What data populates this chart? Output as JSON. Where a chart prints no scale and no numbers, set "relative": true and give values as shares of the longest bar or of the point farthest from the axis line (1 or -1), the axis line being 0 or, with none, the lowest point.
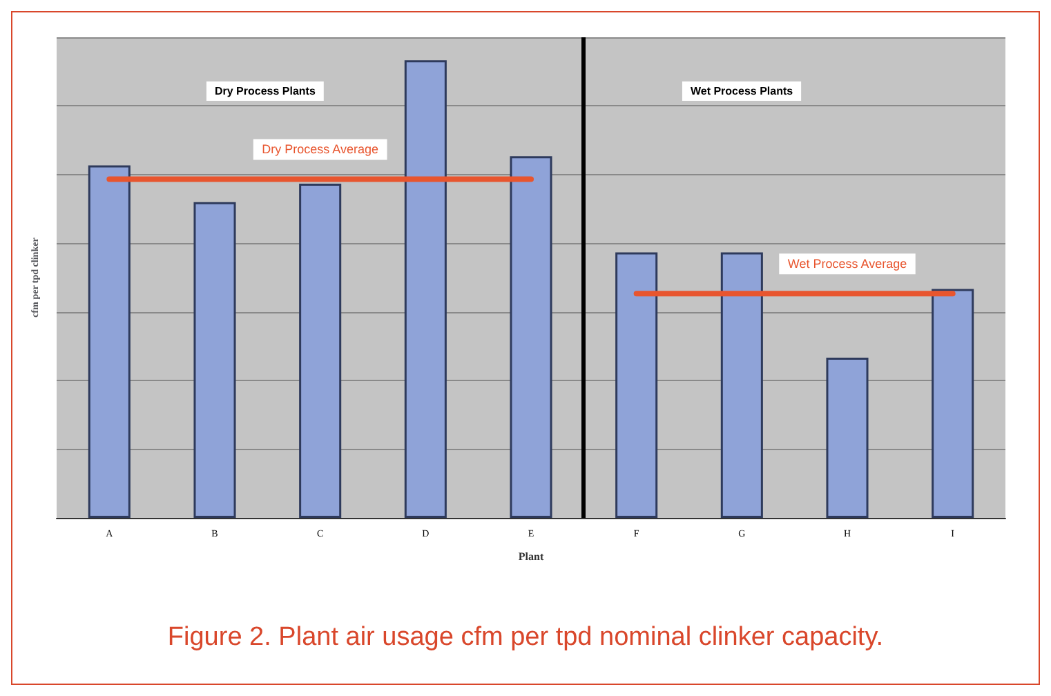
{
  "chart_data": {
    "type": "bar",
    "relative": true,
    "xlabel": "Plant",
    "ylabel": "cfm per tpd clinker",
    "categories": [
      "A",
      "B",
      "C",
      "D",
      "E",
      "F",
      "G",
      "H",
      "I"
    ],
    "series": [
      {
        "color": "#8fa3d8",
        "values": [
          0.77,
          0.69,
          0.73,
          1,
          0.79,
          0.58,
          0.58,
          0.35,
          0.5
        ]
      },
      {
        "type": "line",
        "name": "Dry Process Average",
        "color": "#e8552e",
        "values": [
          0.74,
          0.74,
          0.74,
          0.74,
          0.74,
          null,
          null,
          null,
          null
        ]
      },
      {
        "type": "line",
        "name": "Wet Process Average",
        "color": "#e8552e",
        "values": [
          null,
          null,
          null,
          null,
          null,
          0.49,
          0.49,
          0.49,
          0.49
        ]
      }
    ],
    "grid": "y",
    "marker": "none",
    "legend": false,
    "annotations": [
      "Dry Process Plants",
      "Wet Process Plants",
      "Figure 2. Plant air usage cfm per tpd nominal clinker capacity."
    ]
  }
}
